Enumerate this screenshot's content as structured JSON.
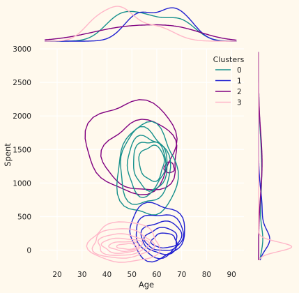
{
  "chart_data": {
    "type": "jointplot-kde",
    "xlabel": "Age",
    "ylabel": "Spent",
    "xlim": [
      13,
      95
    ],
    "ylim": [
      -150,
      3000
    ],
    "xticks": [
      20,
      30,
      40,
      50,
      60,
      70,
      80,
      90
    ],
    "yticks": [
      0,
      500,
      1000,
      1500,
      2000,
      2500,
      3000
    ],
    "grid": true,
    "legend": {
      "title": "Clusters",
      "placement": "top-right"
    },
    "series": [
      {
        "name": "0",
        "color": "#16908c",
        "center": [
          54,
          1200
        ],
        "spread": [
          10,
          400
        ],
        "peak_y": 1620
      },
      {
        "name": "1",
        "color": "#1f1fd0",
        "center": [
          60,
          250
        ],
        "spread": [
          10,
          260
        ],
        "peak_y": 150
      },
      {
        "name": "2",
        "color": "#800080",
        "center": [
          52,
          1450
        ],
        "spread": [
          15,
          450
        ],
        "peak_y": 1250
      },
      {
        "name": "3",
        "color": "#ffb6c8",
        "center": [
          45,
          80
        ],
        "spread": [
          11,
          150
        ],
        "peak_y": 60
      }
    ]
  }
}
